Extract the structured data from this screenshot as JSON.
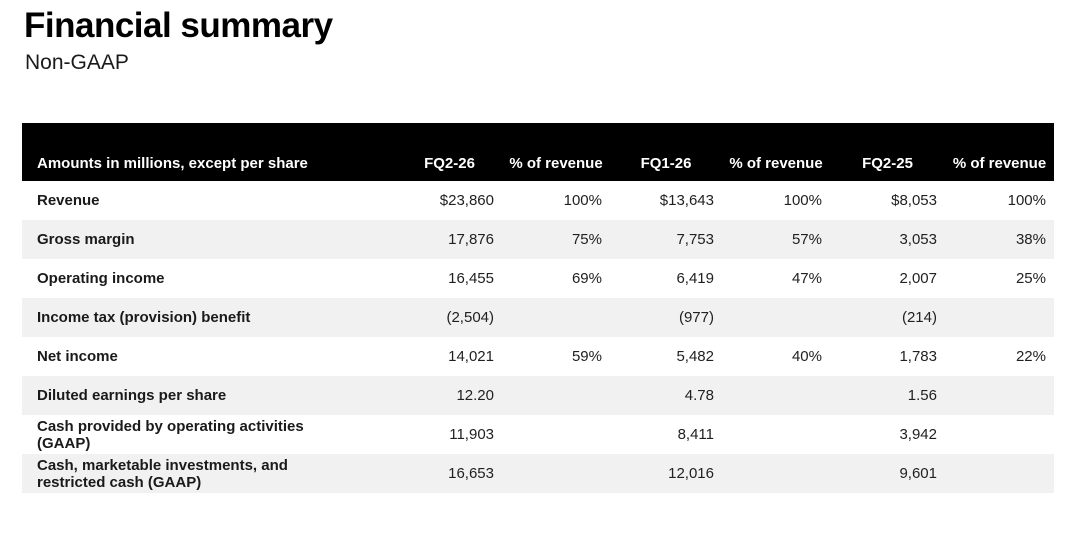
{
  "page": {
    "title": "Financial summary",
    "subtitle": "Non-GAAP"
  },
  "colors": {
    "header_bg": "#000000",
    "header_text": "#ffffff",
    "stripe_bg": "#f1f1f1",
    "body_text": "#212121"
  },
  "table": {
    "columns": [
      "Amounts in millions, except per share",
      "FQ2-26",
      "% of revenue",
      "FQ1-26",
      "% of revenue",
      "FQ2-25",
      "% of revenue"
    ],
    "rows": [
      {
        "label": "Revenue",
        "values": [
          "$23,860",
          "100%",
          "$13,643",
          "100%",
          "$8,053",
          "100%"
        ]
      },
      {
        "label": "Gross margin",
        "values": [
          "17,876",
          "75%",
          "7,753",
          "57%",
          "3,053",
          "38%"
        ]
      },
      {
        "label": "Operating income",
        "values": [
          "16,455",
          "69%",
          "6,419",
          "47%",
          "2,007",
          "25%"
        ]
      },
      {
        "label": "Income tax (provision) benefit",
        "values": [
          "(2,504)",
          "",
          "(977)",
          "",
          "(214)",
          ""
        ]
      },
      {
        "label": "Net income",
        "values": [
          "14,021",
          "59%",
          "5,482",
          "40%",
          "1,783",
          "22%"
        ]
      },
      {
        "label": "Diluted earnings per share",
        "values": [
          "12.20",
          "",
          "4.78",
          "",
          "1.56",
          ""
        ]
      },
      {
        "label": "Cash provided by operating activities (GAAP)",
        "values": [
          "11,903",
          "",
          "8,411",
          "",
          "3,942",
          ""
        ]
      },
      {
        "label": "Cash, marketable investments, and restricted cash (GAAP)",
        "values": [
          "16,653",
          "",
          "12,016",
          "",
          "9,601",
          ""
        ]
      }
    ]
  }
}
